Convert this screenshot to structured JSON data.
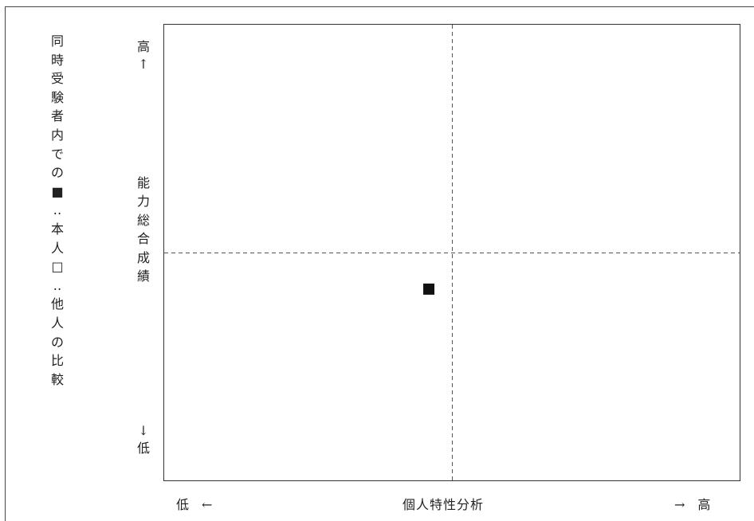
{
  "chart_data": {
    "type": "scatter",
    "title": "",
    "side_label": [
      "同",
      "時",
      "受",
      "験",
      "者",
      "内",
      "で",
      "の",
      "■",
      "‥",
      "本",
      "人",
      "□",
      "‥",
      "他",
      "人",
      "の",
      "比",
      "較"
    ],
    "ylabel": [
      "能",
      "力",
      "総",
      "合",
      "成",
      "績"
    ],
    "y_high_marker": [
      "高",
      "↑"
    ],
    "y_low_marker": [
      "↓",
      "低"
    ],
    "xlabel": "個人特性分析",
    "x_low_marker": "低　←",
    "x_high_marker": "→　高",
    "xlim": [
      0,
      100
    ],
    "ylim": [
      0,
      100
    ],
    "divider_x": 50,
    "divider_y": 50,
    "grid": false,
    "series": [
      {
        "marker": "filled-square",
        "points": [
          {
            "x": 46,
            "y": 42
          }
        ]
      }
    ],
    "colors": {
      "axis": "#333333",
      "divider": "#555555",
      "marker": "#111111"
    }
  }
}
